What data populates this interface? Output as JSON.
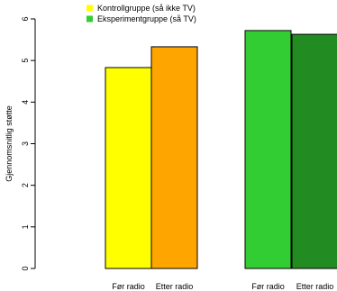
{
  "chart_data": {
    "type": "bar",
    "ylabel": "Gjennomsnitlig støtte",
    "ylim": [
      0,
      6
    ],
    "yticks": [
      0,
      1,
      2,
      3,
      4,
      5,
      6
    ],
    "grid": false,
    "legend": {
      "placement": "top",
      "entries": [
        {
          "label": "Kontrollgruppe (så ikke TV)",
          "color": "#FFFF00"
        },
        {
          "label": "Eksperimentgruppe (så TV)",
          "color": "#32CD32"
        }
      ]
    },
    "bars": [
      {
        "group": "Kontrollgruppe (så ikke TV)",
        "label": "Før radio",
        "value": 4.83,
        "color": "#FFFF00"
      },
      {
        "group": "Kontrollgruppe (så ikke TV)",
        "label": "Etter radio",
        "value": 5.33,
        "color": "#FFA500"
      },
      {
        "group": "Eksperimentgruppe (så TV)",
        "label": "Før radio",
        "value": 5.72,
        "color": "#32CD32"
      },
      {
        "group": "Eksperimentgruppe (så TV)",
        "label": "Etter radio",
        "value": 5.63,
        "color": "#228B22"
      }
    ]
  }
}
